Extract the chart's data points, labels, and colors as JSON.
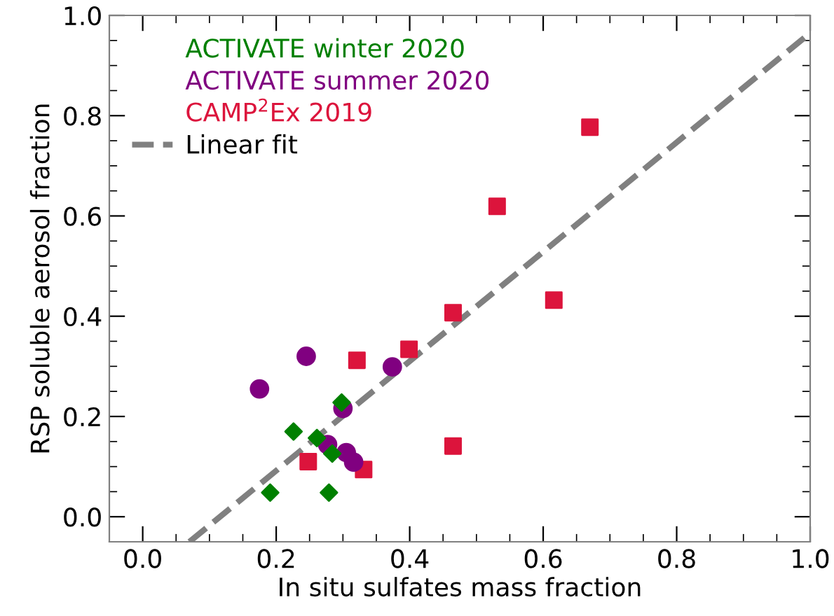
{
  "chart_data": {
    "type": "scatter",
    "xlabel": "In situ sulfates mass fraction",
    "ylabel": "RSP soluble aerosol fraction",
    "xlim": [
      -0.05,
      1.0
    ],
    "ylim": [
      -0.05,
      1.0
    ],
    "xticks": [
      {
        "value": 0.0,
        "label": "0.0"
      },
      0.2,
      0.4,
      0.6,
      0.8,
      {
        "value": 1.0,
        "label": "1.0"
      }
    ],
    "yticks": [
      {
        "value": 0.0,
        "label": "0.0"
      },
      0.2,
      0.4,
      0.6,
      0.8,
      {
        "value": 1.0,
        "label": "1.0"
      }
    ],
    "grid": false,
    "legend": "top left",
    "series": [
      {
        "name": "ACTIVATE winter 2020",
        "color": "#008000",
        "marker": "diamond",
        "x": [
          0.226,
          0.261,
          0.284,
          0.191,
          0.279,
          0.298
        ],
        "values": [
          0.17,
          0.157,
          0.126,
          0.048,
          0.048,
          0.228
        ]
      },
      {
        "name": "ACTIVATE summer 2020",
        "color": "#800080",
        "marker": "circle",
        "x": [
          0.175,
          0.245,
          0.3,
          0.374,
          0.277,
          0.305,
          0.316
        ],
        "values": [
          0.255,
          0.32,
          0.216,
          0.299,
          0.144,
          0.128,
          0.109
        ]
      },
      {
        "name": "CAMP$^{2}$Ex 2019",
        "color": "#dc143c",
        "marker": "square",
        "x": [
          0.248,
          0.331,
          0.321,
          0.399,
          0.465,
          0.465,
          0.531,
          0.616,
          0.67
        ],
        "values": [
          0.11,
          0.094,
          0.312,
          0.334,
          0.407,
          0.141,
          0.619,
          0.432,
          0.777
        ]
      },
      {
        "name": "Linear fit",
        "type": "line",
        "color": "#808080",
        "line_style": "dashed",
        "marker": "none",
        "x": [
          0.07,
          1.0
        ],
        "values": [
          -0.05,
          0.965
        ]
      }
    ]
  }
}
